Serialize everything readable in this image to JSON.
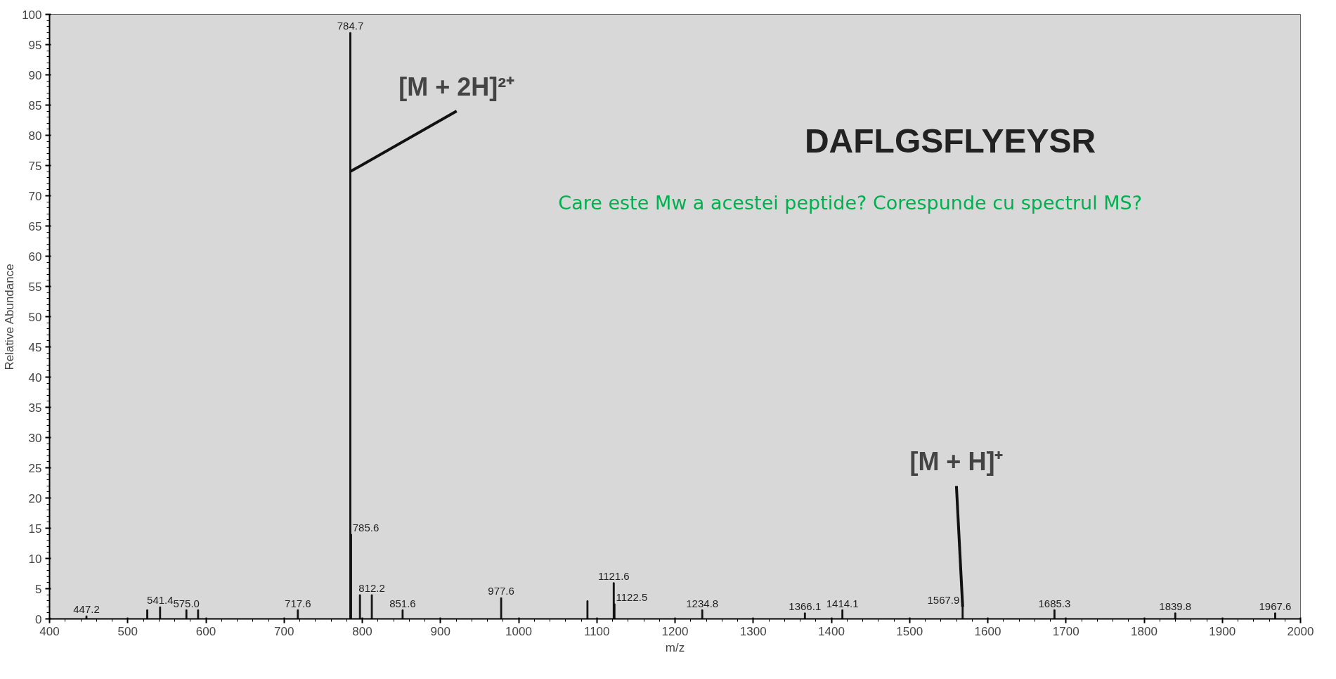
{
  "chart_data": {
    "type": "bar",
    "xlabel": "m/z",
    "ylabel": "Relative Abundance",
    "x": [
      447.2,
      525.0,
      541.4,
      575.0,
      590.0,
      717.6,
      784.7,
      785.6,
      797.0,
      812.2,
      851.6,
      977.6,
      1088.0,
      1121.6,
      1122.5,
      1234.8,
      1366.1,
      1414.1,
      1567.9,
      1685.3,
      1839.8,
      1967.6
    ],
    "values": [
      0.5,
      1.5,
      2,
      1.5,
      1.5,
      1.5,
      97,
      14,
      4,
      4,
      1.5,
      3.5,
      3,
      6,
      2.5,
      1.5,
      1,
      1.5,
      2,
      1.5,
      1,
      1
    ],
    "color": "#111111",
    "xlim": [
      400,
      2000
    ],
    "xticks": [
      400,
      500,
      600,
      700,
      800,
      900,
      1000,
      1100,
      1200,
      1300,
      1400,
      1500,
      1600,
      1700,
      1800,
      1900,
      2000
    ],
    "ylim": [
      0,
      100
    ],
    "yticks": [
      0,
      5,
      10,
      15,
      20,
      25,
      30,
      35,
      40,
      45,
      50,
      55,
      60,
      65,
      70,
      75,
      80,
      85,
      90,
      95,
      100
    ],
    "grid": false,
    "annotations": [
      {
        "text": "[M + 2H]²⁺",
        "x": 784.7,
        "y": 74
      },
      {
        "text": "[M + H]⁺",
        "x": 1567.9,
        "y": 2
      },
      "DAFLGSFLYEYSR",
      "Care este Mw a acestei peptide? Corespunde cu spectrul MS?",
      {
        "text": "447.2",
        "x": 447.2,
        "y": 0.5
      },
      {
        "text": "541.4",
        "x": 541.4,
        "y": 2
      },
      {
        "text": "575.0",
        "x": 575.0,
        "y": 1.5
      },
      {
        "text": "717.6",
        "x": 717.6,
        "y": 1.5
      },
      {
        "text": "784.7",
        "x": 784.7,
        "y": 97
      },
      {
        "text": "785.6",
        "x": 785.6,
        "y": 14
      },
      {
        "text": "812.2",
        "x": 812.2,
        "y": 4
      },
      {
        "text": "851.6",
        "x": 851.6,
        "y": 1.5
      },
      {
        "text": "977.6",
        "x": 977.6,
        "y": 3.5
      },
      {
        "text": "1121.6",
        "x": 1121.6,
        "y": 6
      },
      {
        "text": "1122.5",
        "x": 1122.5,
        "y": 2.5
      },
      {
        "text": "1234.8",
        "x": 1234.8,
        "y": 1.5
      },
      {
        "text": "1366.1",
        "x": 1366.1,
        "y": 1
      },
      {
        "text": "1414.1",
        "x": 1414.1,
        "y": 1.5
      },
      {
        "text": "1567.9",
        "x": 1567.9,
        "y": 2
      },
      {
        "text": "1685.3",
        "x": 1685.3,
        "y": 1.5
      },
      {
        "text": "1839.8",
        "x": 1839.8,
        "y": 1
      },
      {
        "text": "1967.6",
        "x": 1967.6,
        "y": 1
      }
    ]
  }
}
